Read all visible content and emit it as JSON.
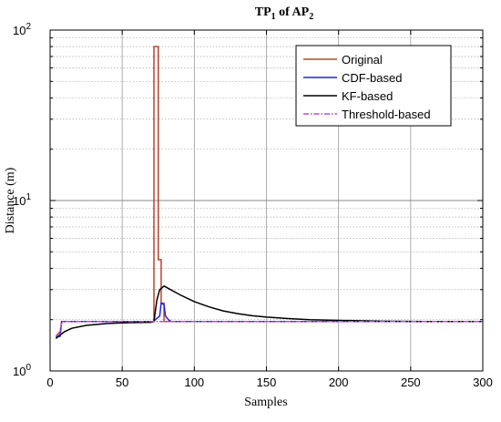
{
  "chart_data": {
    "type": "line",
    "title_main": "TP",
    "title_sub1": "1",
    "title_mid": " of AP",
    "title_sub2": "2",
    "xlabel": "Samples",
    "ylabel": "Distance (m)",
    "x_scale": "linear",
    "y_scale": "log",
    "xlim": [
      0,
      300
    ],
    "ylim": [
      1,
      100
    ],
    "x_ticks": [
      0,
      50,
      100,
      150,
      200,
      250,
      300
    ],
    "x_tick_labels": [
      "0",
      "50",
      "100",
      "150",
      "200",
      "250",
      "300"
    ],
    "y_tick_labels": [
      {
        "base": "10",
        "exp": "0",
        "value": 1
      },
      {
        "base": "10",
        "exp": "1",
        "value": 10
      },
      {
        "base": "10",
        "exp": "2",
        "value": 100
      }
    ],
    "grid": true,
    "legend_position": "top-right",
    "series": [
      {
        "name": "Original",
        "color": "#b5462a",
        "dash": "solid",
        "points": [
          [
            4,
            1.6
          ],
          [
            7,
            1.7
          ],
          [
            8,
            1.95
          ],
          [
            12,
            1.95
          ],
          [
            72,
            1.95
          ],
          [
            72,
            80
          ],
          [
            75,
            80
          ],
          [
            75,
            4.5
          ],
          [
            77,
            4.5
          ],
          [
            77,
            2.5
          ],
          [
            79,
            2.5
          ],
          [
            79,
            1.95
          ],
          [
            84,
            1.95
          ],
          [
            85,
            1.95
          ],
          [
            300,
            1.95
          ]
        ]
      },
      {
        "name": "CDF-based",
        "color": "#2222dd",
        "dash": "solid",
        "points": [
          [
            4,
            1.58
          ],
          [
            7,
            1.6
          ],
          [
            8,
            1.95
          ],
          [
            72,
            1.95
          ],
          [
            73,
            2.0
          ],
          [
            76,
            2.1
          ],
          [
            77,
            2.5
          ],
          [
            79,
            2.45
          ],
          [
            80,
            2.1
          ],
          [
            82,
            2.0
          ],
          [
            84,
            1.95
          ],
          [
            300,
            1.95
          ]
        ]
      },
      {
        "name": "KF-based",
        "color": "#000000",
        "dash": "solid",
        "points": [
          [
            4,
            1.55
          ],
          [
            6,
            1.6
          ],
          [
            10,
            1.7
          ],
          [
            15,
            1.78
          ],
          [
            25,
            1.85
          ],
          [
            40,
            1.9
          ],
          [
            55,
            1.92
          ],
          [
            70,
            1.93
          ],
          [
            72,
            1.95
          ],
          [
            74,
            2.6
          ],
          [
            76,
            3.0
          ],
          [
            79,
            3.15
          ],
          [
            82,
            3.05
          ],
          [
            90,
            2.8
          ],
          [
            100,
            2.55
          ],
          [
            110,
            2.38
          ],
          [
            120,
            2.25
          ],
          [
            130,
            2.17
          ],
          [
            140,
            2.11
          ],
          [
            150,
            2.07
          ],
          [
            165,
            2.03
          ],
          [
            180,
            2.0
          ],
          [
            200,
            1.98
          ],
          [
            230,
            1.96
          ],
          [
            260,
            1.95
          ],
          [
            300,
            1.95
          ]
        ]
      },
      {
        "name": "Threshold-based",
        "color": "#b84ad8",
        "dash": "dashdot",
        "points": [
          [
            4,
            1.6
          ],
          [
            7,
            1.65
          ],
          [
            8,
            1.95
          ],
          [
            300,
            1.95
          ]
        ]
      }
    ]
  }
}
